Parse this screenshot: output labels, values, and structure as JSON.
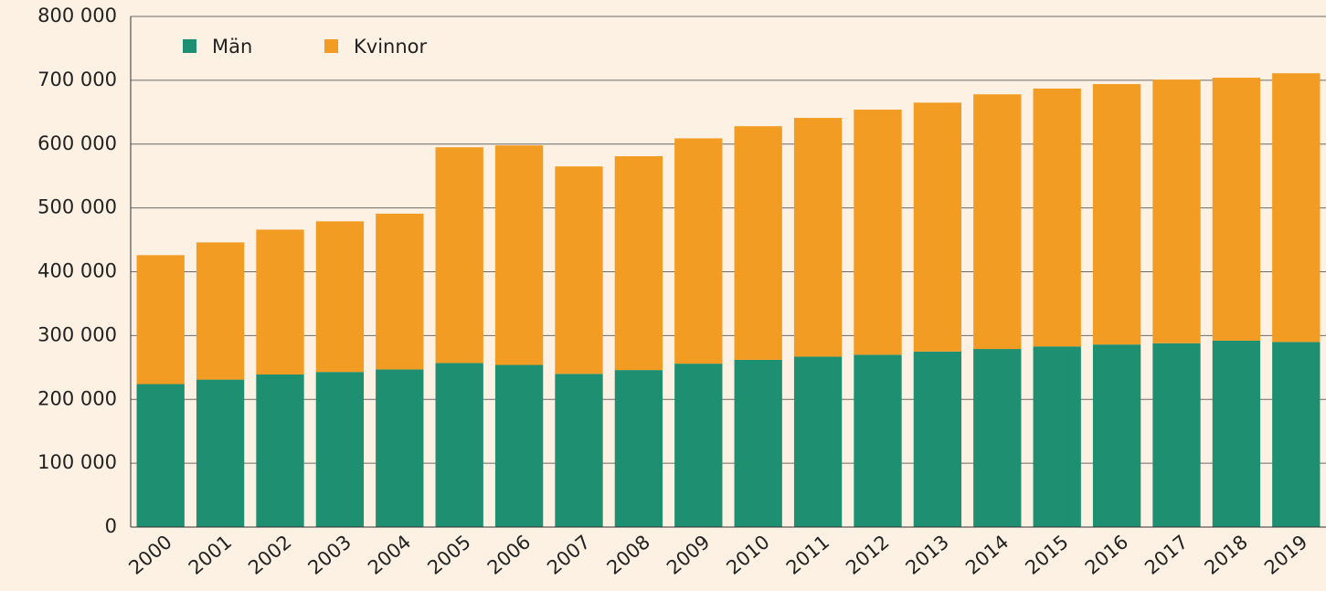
{
  "chart_data": {
    "type": "stacked_bar",
    "categories": [
      "2000",
      "2001",
      "2002",
      "2003",
      "2004",
      "2005",
      "2006",
      "2007",
      "2008",
      "2009",
      "2010",
      "2011",
      "2012",
      "2013",
      "2014",
      "2015",
      "2016",
      "2017",
      "2018",
      "2019"
    ],
    "series": [
      {
        "name": "Män",
        "color": "#1e8f70",
        "values": [
          224000,
          231000,
          239000,
          243000,
          247000,
          257000,
          254000,
          240000,
          246000,
          256000,
          262000,
          267000,
          270000,
          275000,
          279000,
          283000,
          286000,
          288000,
          292000,
          290000
        ]
      },
      {
        "name": "Kvinnor",
        "color": "#f39c23",
        "values": [
          202000,
          215000,
          227000,
          236000,
          244000,
          338000,
          344000,
          325000,
          335000,
          353000,
          366000,
          374000,
          384000,
          390000,
          399000,
          404000,
          408000,
          413000,
          412000,
          421000
        ]
      }
    ],
    "ylim": [
      0,
      800000
    ],
    "yticks": [
      0,
      {
        "value": 100000,
        "label": "100 000"
      },
      {
        "value": 200000,
        "label": "200 000"
      },
      {
        "value": 300000,
        "label": "300 000"
      },
      {
        "value": 400000,
        "label": "400 000"
      },
      {
        "value": 500000,
        "label": "500 000"
      },
      {
        "value": 600000,
        "label": "600 000"
      },
      {
        "value": 700000,
        "label": "700 000"
      },
      {
        "value": 800000,
        "label": "800 000"
      }
    ],
    "grid": true,
    "legend": "top-left"
  }
}
